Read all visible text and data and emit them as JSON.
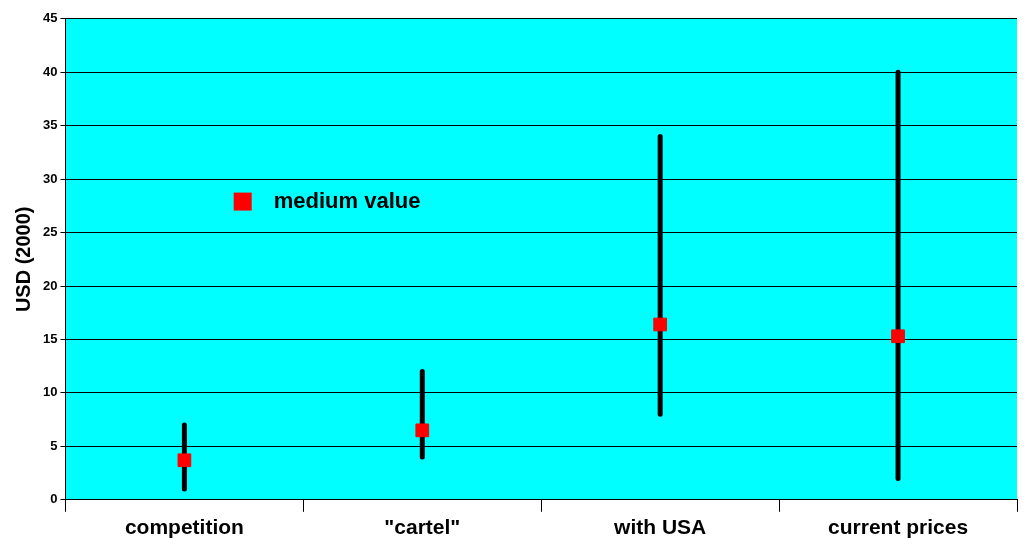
{
  "chart_data": {
    "type": "scatter",
    "ylabel": "USD (2000)",
    "categories": [
      "competition",
      "\"cartel\"",
      "with USA",
      "current prices"
    ],
    "series": [
      {
        "name": "medium value",
        "color": "#ff0000",
        "values": [
          3.7,
          6.5,
          16.4,
          15.3
        ],
        "errors": [
          [
            1,
            7
          ],
          [
            4,
            12
          ],
          [
            8,
            34
          ],
          [
            2,
            40
          ]
        ]
      }
    ],
    "ylim": [
      0,
      45
    ],
    "yticks": [
      0,
      5,
      10,
      15,
      20,
      25,
      30,
      35,
      40,
      45
    ],
    "grid": "y",
    "legend": "left",
    "marker": "square"
  }
}
